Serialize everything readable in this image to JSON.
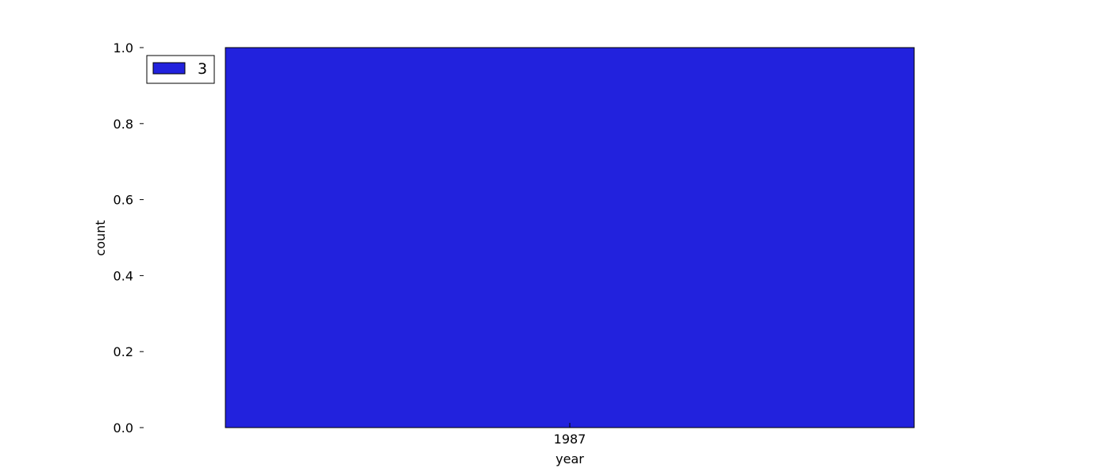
{
  "chart_data": {
    "type": "bar",
    "categories": [
      "1987"
    ],
    "series": [
      {
        "name": "3",
        "values": [
          1.0
        ],
        "color": "#2222dd"
      }
    ],
    "title": "",
    "xlabel": "year",
    "ylabel": "count",
    "ylim": [
      0,
      1.0
    ],
    "yticks": [
      "0.0",
      "0.2",
      "0.4",
      "0.6",
      "0.8",
      "1.0"
    ],
    "grid": false,
    "legend_position": "top-left"
  }
}
